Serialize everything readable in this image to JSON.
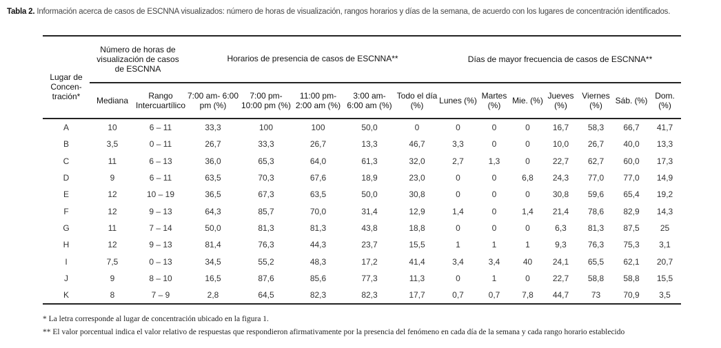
{
  "caption": {
    "label": "Tabla 2.",
    "text": " Información acerca de casos de ESCNNA visualizados: número de horas de visualización, rangos horarios y días de la semana, de acuerdo con los lugares de concentración identificados."
  },
  "header": {
    "lugar": "Lugar de Concen-tración*",
    "group_horas": "Número de horas de visualización de casos de ESCNNA",
    "group_horarios": "Horarios de presencia de casos de ESCNNA**",
    "group_dias": "Días de mayor frecuencia de casos de ESCNNA**",
    "columns": [
      "Mediana",
      "Rango Intercuartílico",
      "7:00 am- 6:00 pm (%)",
      "7:00 pm- 10:00 pm (%)",
      "11:00 pm- 2:00 am (%)",
      "3:00 am- 6:00 am (%)",
      "Todo el día (%)",
      "Lunes (%)",
      "Martes (%)",
      "Mie. (%)",
      "Jueves (%)",
      "Viernes (%)",
      "Sáb. (%)",
      "Dom. (%)"
    ]
  },
  "rows": [
    [
      "A",
      "10",
      "6 – 11",
      "33,3",
      "100",
      "100",
      "50,0",
      "0",
      "0",
      "0",
      "0",
      "16,7",
      "58,3",
      "66,7",
      "41,7"
    ],
    [
      "B",
      "3,5",
      "0 – 11",
      "26,7",
      "33,3",
      "26,7",
      "13,3",
      "46,7",
      "3,3",
      "0",
      "0",
      "10,0",
      "26,7",
      "40,0",
      "13,3"
    ],
    [
      "C",
      "11",
      "6 – 13",
      "36,0",
      "65,3",
      "64,0",
      "61,3",
      "32,0",
      "2,7",
      "1,3",
      "0",
      "22,7",
      "62,7",
      "60,0",
      "17,3"
    ],
    [
      "D",
      "9",
      "6 – 11",
      "63,5",
      "70,3",
      "67,6",
      "18,9",
      "23,0",
      "0",
      "0",
      "6,8",
      "24,3",
      "77,0",
      "77,0",
      "14,9"
    ],
    [
      "E",
      "12",
      "10 – 19",
      "36,5",
      "67,3",
      "63,5",
      "50,0",
      "30,8",
      "0",
      "0",
      "0",
      "30,8",
      "59,6",
      "65,4",
      "19,2"
    ],
    [
      "F",
      "12",
      "9 – 13",
      "64,3",
      "85,7",
      "70,0",
      "31,4",
      "12,9",
      "1,4",
      "0",
      "1,4",
      "21,4",
      "78,6",
      "82,9",
      "14,3"
    ],
    [
      "G",
      "11",
      "7 – 14",
      "50,0",
      "81,3",
      "81,3",
      "43,8",
      "18,8",
      "0",
      "0",
      "0",
      "6,3",
      "81,3",
      "87,5",
      "25"
    ],
    [
      "H",
      "12",
      "9 – 13",
      "81,4",
      "76,3",
      "44,3",
      "23,7",
      "15,5",
      "1",
      "1",
      "1",
      "9,3",
      "76,3",
      "75,3",
      "3,1"
    ],
    [
      "I",
      "7,5",
      "0 – 13",
      "34,5",
      "55,2",
      "48,3",
      "17,2",
      "41,4",
      "3,4",
      "3,4",
      "40",
      "24,1",
      "65,5",
      "62,1",
      "20,7"
    ],
    [
      "J",
      "9",
      "8 – 10",
      "16,5",
      "87,6",
      "85,6",
      "77,3",
      "11,3",
      "0",
      "1",
      "0",
      "22,7",
      "58,8",
      "58,8",
      "15,5"
    ],
    [
      "K",
      "8",
      "7 – 9",
      "2,8",
      "64,5",
      "82,3",
      "82,3",
      "17,7",
      "0,7",
      "0,7",
      "7,8",
      "44,7",
      "73",
      "70,9",
      "3,5"
    ]
  ],
  "footnotes": [
    "* La letra corresponde al lugar de concentración ubicado en la figura 1.",
    "** El valor porcentual indica el valor relativo de respuestas que respondieron afirmativamente por la presencia del fenómeno en cada día de la semana y cada rango horario establecido"
  ]
}
